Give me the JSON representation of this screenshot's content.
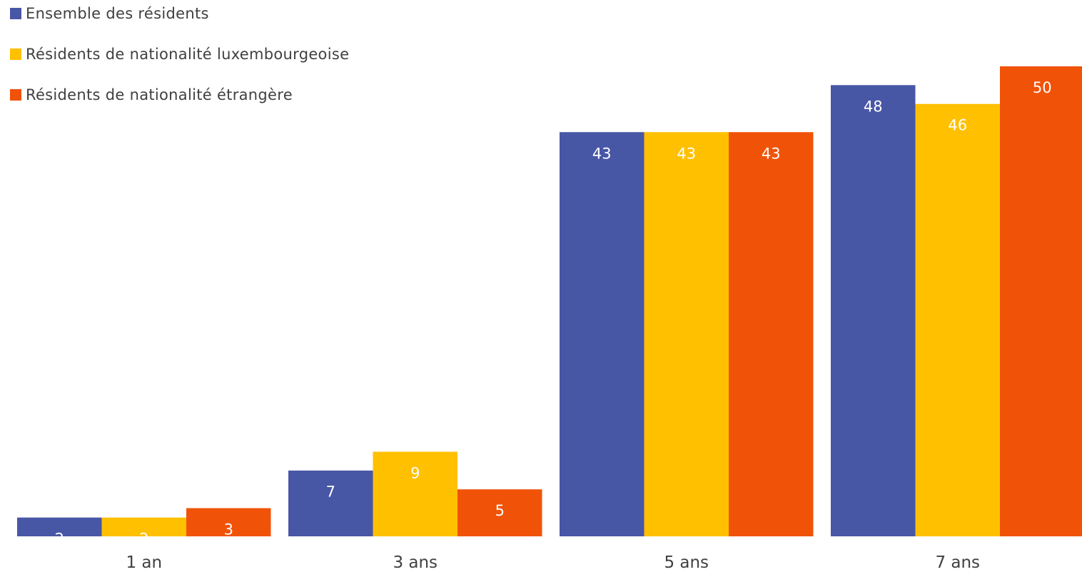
{
  "chart_data": {
    "type": "bar",
    "categories": [
      "1 an",
      "3 ans",
      "5 ans",
      "7 ans"
    ],
    "series": [
      {
        "name": "Ensemble des résidents",
        "color": "#4856A6",
        "values": [
          2,
          7,
          43,
          48
        ]
      },
      {
        "name": "Résidents de nationalité luxembourgeoise",
        "color": "#FFC000",
        "values": [
          2,
          9,
          43,
          46
        ]
      },
      {
        "name": "Résidents de nationalité étrangère",
        "color": "#F05308",
        "values": [
          3,
          5,
          43,
          50
        ]
      }
    ],
    "data_labels": true,
    "legend_position": "top-left",
    "grid": false,
    "ylim": [
      0,
      50
    ]
  }
}
